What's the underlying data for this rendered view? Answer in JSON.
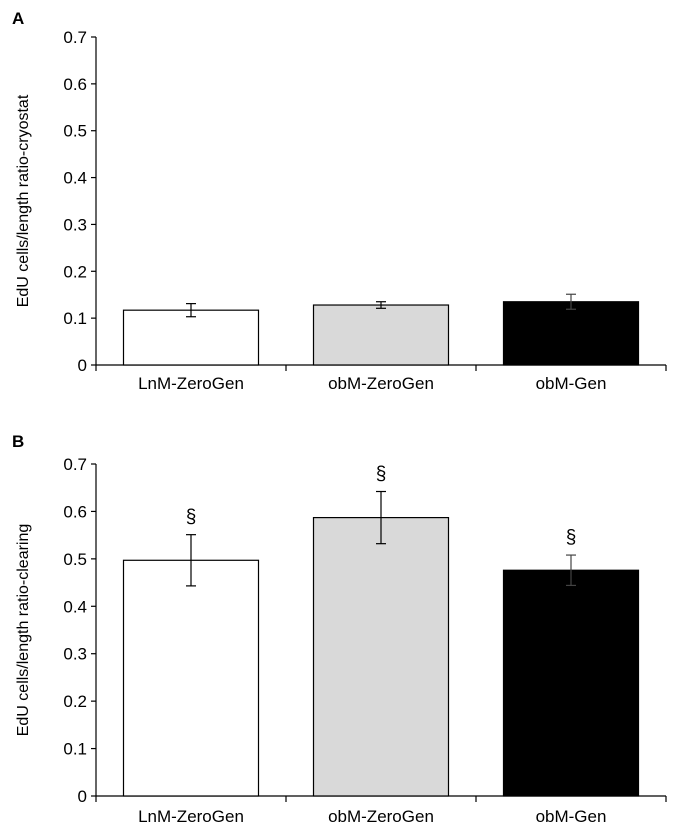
{
  "chart_data": [
    {
      "type": "bar",
      "panel_label": "A",
      "categories": [
        "LnM-ZeroGen",
        "obM-ZeroGen",
        "obM-Gen"
      ],
      "values": [
        0.117,
        0.128,
        0.135
      ],
      "errors": [
        0.014,
        0.007,
        0.016
      ],
      "annotations": [
        "",
        "",
        ""
      ],
      "bar_colors": [
        "#ffffff",
        "#d9d9d9",
        "#000000"
      ],
      "xlabel": "",
      "ylabel": "EdU cells/length ratio-cryostat",
      "ylim": [
        0,
        0.7
      ],
      "yticks": [
        "0",
        "0.1",
        "0.2",
        "0.3",
        "0.4",
        "0.5",
        "0.6",
        "0.7"
      ],
      "grid": false
    },
    {
      "type": "bar",
      "panel_label": "B",
      "categories": [
        "LnM-ZeroGen",
        "obM-ZeroGen",
        "obM-Gen"
      ],
      "values": [
        0.497,
        0.587,
        0.476
      ],
      "errors": [
        0.054,
        0.055,
        0.032
      ],
      "annotations": [
        "§",
        "§",
        "§"
      ],
      "bar_colors": [
        "#ffffff",
        "#d9d9d9",
        "#000000"
      ],
      "xlabel": "",
      "ylabel": "EdU cells/length ratio-clearing",
      "ylim": [
        0,
        0.7
      ],
      "yticks": [
        "0",
        "0.1",
        "0.2",
        "0.3",
        "0.4",
        "0.5",
        "0.6",
        "0.7"
      ],
      "grid": false
    }
  ]
}
